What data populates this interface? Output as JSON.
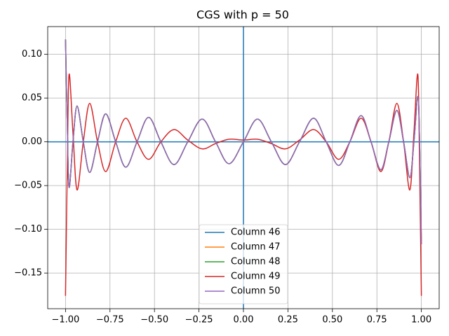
{
  "chart_data": {
    "type": "line",
    "title": "CGS with p = 50",
    "x": [
      -1,
      -0.99,
      -0.98,
      -0.958,
      -0.935,
      -0.9,
      -0.864,
      -0.82,
      -0.774,
      -0.718,
      -0.661,
      -0.598,
      -0.533,
      -0.464,
      -0.39,
      -0.313,
      -0.232,
      -0.157,
      -0.081,
      0,
      0.079,
      0.157,
      0.236,
      0.315,
      0.394,
      0.465,
      0.535,
      0.598,
      0.661,
      0.717,
      0.772,
      0.817,
      0.862,
      0.9,
      0.935,
      0.958,
      0.98,
      0.99,
      1
    ],
    "series": [
      {
        "name": "Column 46",
        "color": "#1f77b4",
        "values": [
          0.117,
          0.02,
          -0.052,
          0,
          0.041,
          0,
          -0.035,
          0,
          0.032,
          0,
          -0.029,
          0,
          0.028,
          0,
          -0.026,
          0,
          0.026,
          0,
          -0.025,
          0,
          0.026,
          0,
          -0.026,
          0,
          0.027,
          0,
          -0.027,
          0,
          0.03,
          0,
          -0.032,
          0,
          0.036,
          0,
          -0.041,
          0,
          0.052,
          0,
          -0.117
        ]
      },
      {
        "name": "Column 47",
        "color": "#ff7f0e",
        "values": [
          0.117,
          0.02,
          -0.052,
          0,
          0.041,
          0,
          -0.035,
          0,
          0.032,
          0,
          -0.029,
          0,
          0.028,
          0,
          -0.026,
          0,
          0.026,
          0,
          -0.025,
          0,
          0.026,
          0,
          -0.026,
          0,
          0.027,
          0,
          -0.027,
          0,
          0.03,
          0,
          -0.032,
          0,
          0.036,
          0,
          -0.041,
          0,
          0.052,
          0,
          -0.117
        ]
      },
      {
        "name": "Column 48",
        "color": "#2ca02c",
        "values": [
          0.117,
          0.02,
          -0.052,
          0,
          0.041,
          0,
          -0.035,
          0,
          0.032,
          0,
          -0.029,
          0,
          0.028,
          0,
          -0.026,
          0,
          0.026,
          0,
          -0.025,
          0,
          0.026,
          0,
          -0.026,
          0,
          0.027,
          0,
          -0.027,
          0,
          0.03,
          0,
          -0.032,
          0,
          0.036,
          0,
          -0.041,
          0,
          0.052,
          0,
          -0.117
        ]
      },
      {
        "name": "Column 49",
        "color": "#d62728",
        "values": [
          -0.176,
          -0.03,
          0.077,
          0.01,
          -0.055,
          0,
          0.044,
          0,
          -0.034,
          0,
          0.027,
          0,
          -0.02,
          0,
          0.014,
          0.002,
          -0.008,
          -0.002,
          0.003,
          0.002,
          0.003,
          -0.002,
          -0.008,
          0.002,
          0.014,
          0,
          -0.02,
          0,
          0.027,
          0,
          -0.034,
          0,
          0.044,
          0,
          -0.055,
          0.01,
          0.077,
          -0.03,
          -0.176
        ]
      },
      {
        "name": "Column 50",
        "color": "#9467bd",
        "values": [
          0.117,
          0.02,
          -0.052,
          0,
          0.041,
          0,
          -0.035,
          0,
          0.032,
          0,
          -0.029,
          0,
          0.028,
          0,
          -0.026,
          0,
          0.026,
          0,
          -0.025,
          0,
          0.026,
          0,
          -0.026,
          0,
          0.027,
          0,
          -0.027,
          0,
          0.03,
          0,
          -0.032,
          0,
          0.036,
          0,
          -0.041,
          0,
          0.052,
          0,
          -0.117
        ]
      }
    ],
    "hlines": [
      0
    ],
    "vlines": [
      0
    ],
    "ref_line_color": "#1f77b4",
    "xlim": [
      -1.1,
      1.1
    ],
    "ylim": [
      -0.1907,
      0.1317
    ],
    "xticks": [
      {
        "value": -1,
        "label": "−1.00"
      },
      {
        "value": -0.75,
        "label": "−0.75"
      },
      {
        "value": -0.5,
        "label": "−0.50"
      },
      {
        "value": -0.25,
        "label": "−0.25"
      },
      {
        "value": 0,
        "label": "0.00"
      },
      {
        "value": 0.25,
        "label": "0.25"
      },
      {
        "value": 0.5,
        "label": "0.50"
      },
      {
        "value": 0.75,
        "label": "0.75"
      },
      {
        "value": 1,
        "label": "1.00"
      }
    ],
    "yticks": [
      {
        "value": -0.15,
        "label": "−0.15"
      },
      {
        "value": -0.1,
        "label": "−0.10"
      },
      {
        "value": -0.05,
        "label": "−0.05"
      },
      {
        "value": 0,
        "label": "0.00"
      },
      {
        "value": 0.05,
        "label": "0.05"
      },
      {
        "value": 0.1,
        "label": "0.10"
      }
    ],
    "grid": true,
    "legend": "lower center"
  }
}
